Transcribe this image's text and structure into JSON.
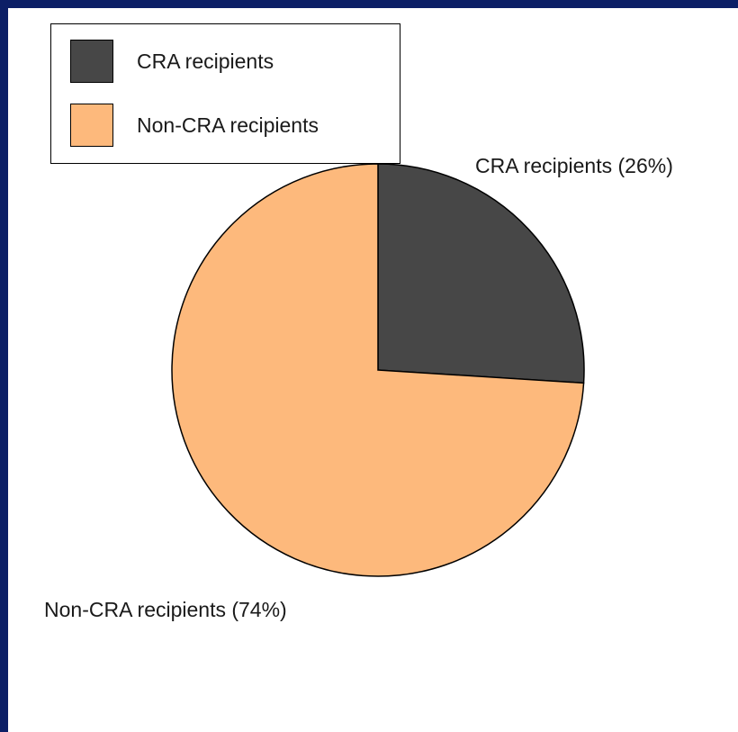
{
  "chart_data": {
    "type": "pie",
    "categories": [
      "CRA recipients",
      "Non-CRA recipients"
    ],
    "values": [
      26,
      74
    ],
    "unit": "%",
    "colors": [
      "#474747",
      "#fdb97c"
    ],
    "start_angle": "12 o'clock, clockwise",
    "legend_placement": "top-left",
    "slice_labels": [
      "CRA recipients (26%)",
      "Non-CRA recipients (74%)"
    ],
    "legend": [
      "CRA recipients",
      "Non-CRA recipients"
    ]
  }
}
